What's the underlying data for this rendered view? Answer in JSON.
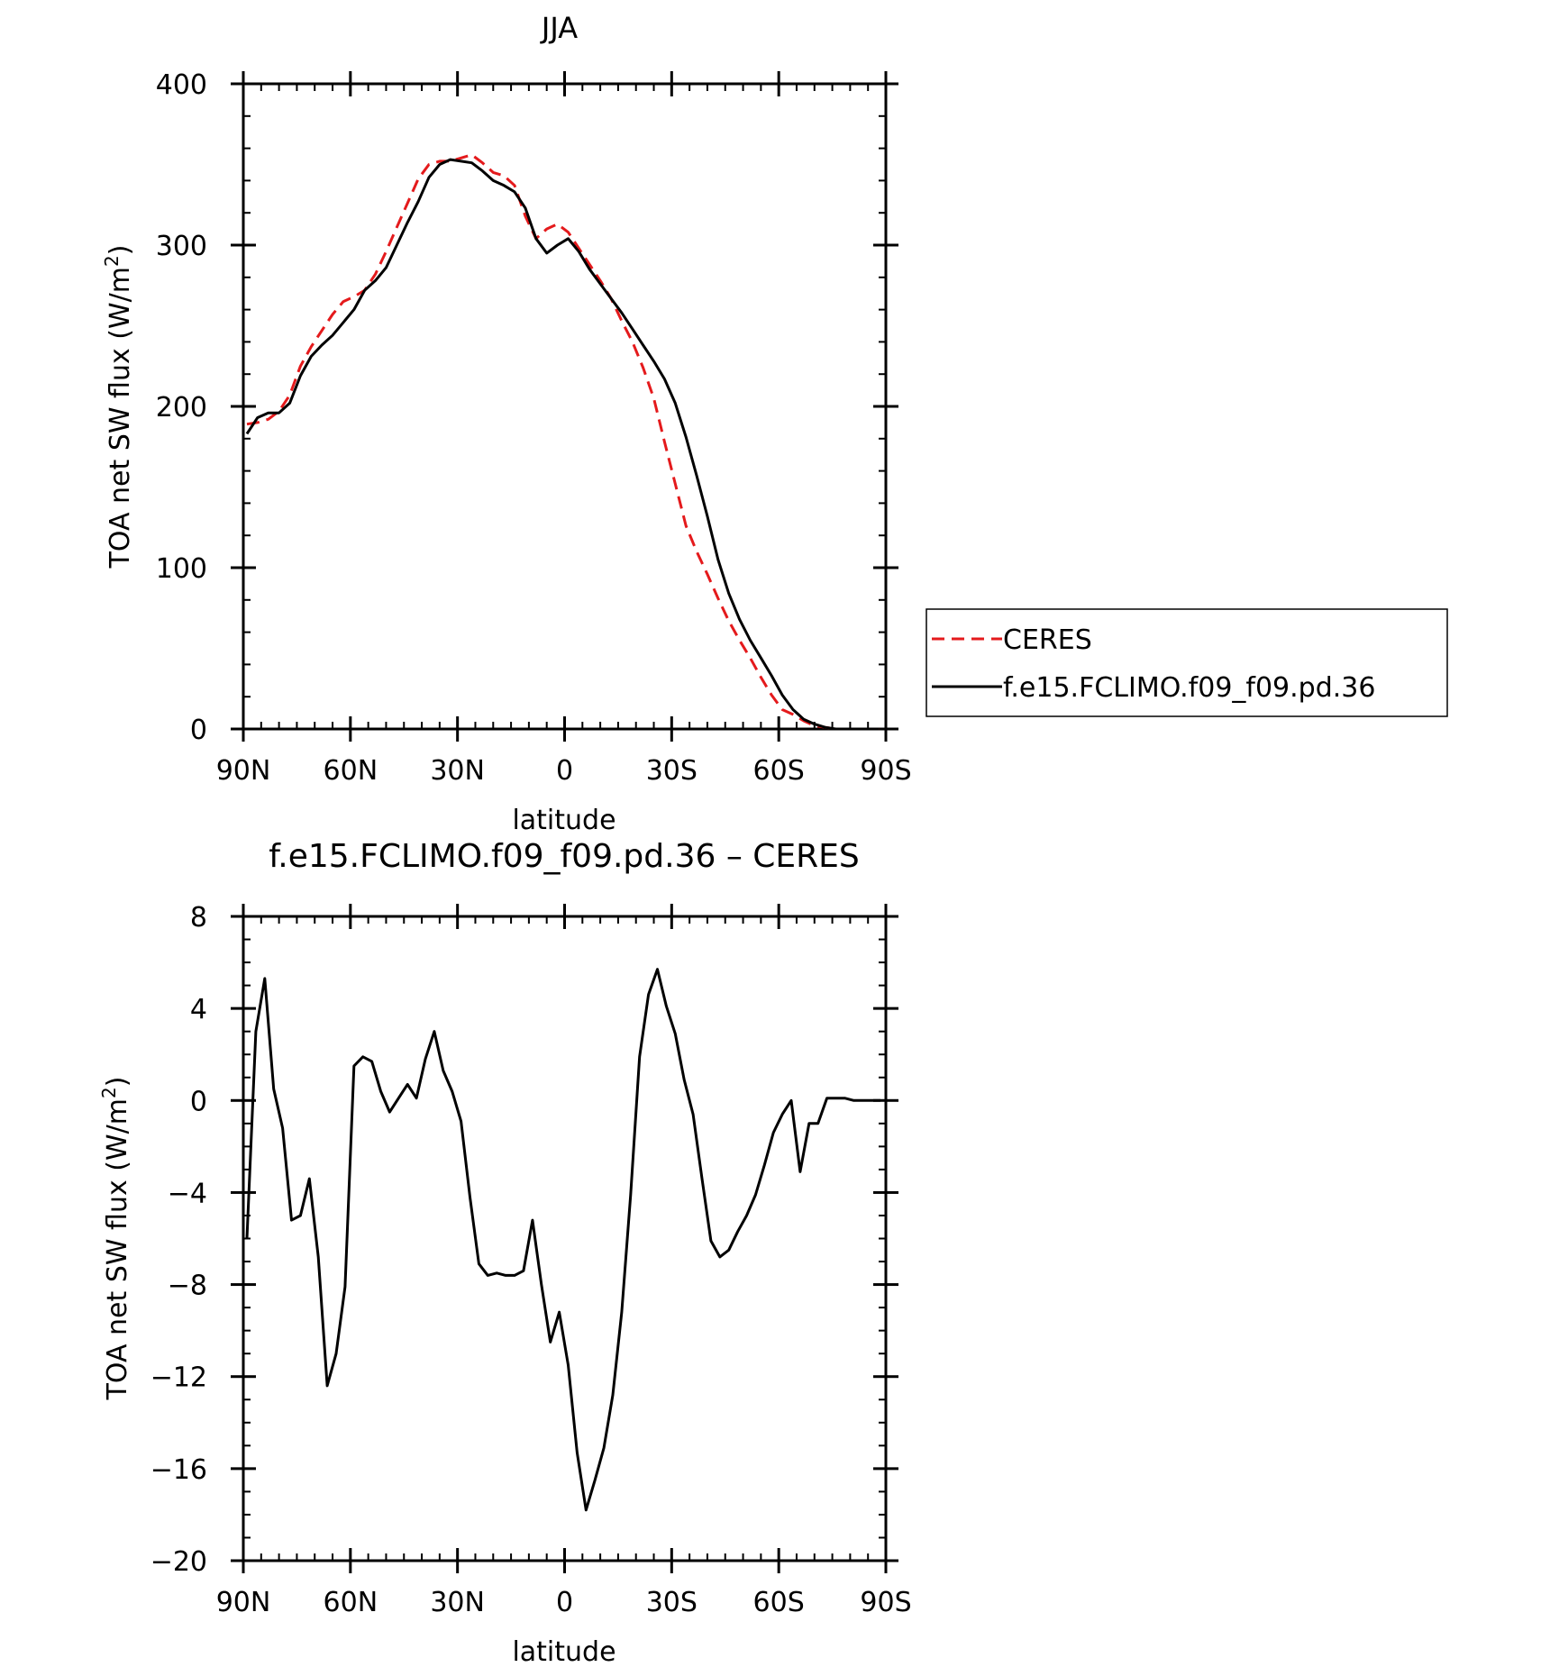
{
  "chart_data": [
    {
      "type": "line",
      "title": "JJA",
      "xlabel": "latitude",
      "ylabel_main": "TOA net SW flux (W/m",
      "ylabel_sup": "2",
      "ylabel_close": ")",
      "xlim": [
        90,
        -90
      ],
      "ylim": [
        0,
        400
      ],
      "xticks": [
        {
          "value": 90,
          "label": "90N"
        },
        {
          "value": 60,
          "label": "60N"
        },
        {
          "value": 30,
          "label": "30N"
        },
        {
          "value": 0,
          "label": "0"
        },
        {
          "value": -30,
          "label": "30S"
        },
        {
          "value": -60,
          "label": "60S"
        },
        {
          "value": -90,
          "label": "90S"
        }
      ],
      "yticks": [
        {
          "value": 0,
          "label": "0"
        },
        {
          "value": 100,
          "label": "100"
        },
        {
          "value": 200,
          "label": "200"
        },
        {
          "value": 300,
          "label": "300"
        },
        {
          "value": 400,
          "label": "400"
        }
      ],
      "legend": {
        "placement": "right"
      },
      "series": [
        {
          "name": "CERES",
          "color": "#e41a1c",
          "dash": true,
          "x": [
            89,
            86,
            83,
            80,
            77,
            74,
            71,
            68,
            65,
            62,
            59,
            56,
            53,
            50,
            47,
            44,
            41,
            38,
            35,
            32,
            29,
            26,
            23,
            20,
            17,
            14,
            11,
            8,
            5,
            2,
            -1,
            -4,
            -7,
            -10,
            -13,
            -16,
            -19,
            -22,
            -25,
            -28,
            -31,
            -34,
            -37,
            -40,
            -43,
            -46,
            -49,
            -52,
            -55,
            -58,
            -61,
            -64,
            -67,
            -70,
            -73,
            -76,
            -79,
            -82,
            -85,
            -88
          ],
          "y": [
            189,
            190,
            192,
            197,
            207,
            225,
            237,
            247,
            257,
            265,
            268,
            272,
            282,
            296,
            311,
            326,
            341,
            350,
            352,
            352,
            354,
            356,
            351,
            345,
            343,
            337,
            318,
            304,
            310,
            313,
            308,
            298,
            288,
            278,
            267,
            253,
            240,
            224,
            205,
            178,
            152,
            126,
            110,
            96,
            81,
            67,
            55,
            44,
            32,
            21,
            12,
            9,
            5,
            2,
            1,
            0,
            0,
            0,
            0,
            0
          ]
        },
        {
          "name": "f.e15.FCLIMO.f09_f09.pd.36",
          "color": "#000000",
          "dash": false,
          "x": [
            89,
            86,
            83,
            80,
            77,
            74,
            71,
            68,
            65,
            62,
            59,
            56,
            53,
            50,
            47,
            44,
            41,
            38,
            35,
            32,
            29,
            26,
            23,
            20,
            17,
            14,
            11,
            8,
            5,
            2,
            -1,
            -4,
            -7,
            -10,
            -13,
            -16,
            -19,
            -22,
            -25,
            -28,
            -31,
            -34,
            -37,
            -40,
            -43,
            -46,
            -49,
            -52,
            -55,
            -58,
            -61,
            -64,
            -67,
            -70,
            -73,
            -76,
            -79,
            -82,
            -85,
            -88
          ],
          "y": [
            183,
            193,
            196,
            196,
            202,
            219,
            231,
            238,
            244,
            252,
            260,
            272,
            278,
            286,
            300,
            314,
            327,
            342,
            350,
            353,
            352,
            351,
            346,
            340,
            337,
            333,
            323,
            304,
            295,
            300,
            304,
            296,
            285,
            276,
            267,
            258,
            248,
            238,
            228,
            217,
            202,
            181,
            157,
            132,
            105,
            84,
            68,
            55,
            44,
            33,
            21,
            12,
            6,
            3,
            1,
            0,
            0,
            0,
            0,
            0
          ]
        }
      ]
    },
    {
      "type": "line",
      "title": "f.e15.FCLIMO.f09_f09.pd.36 – CERES",
      "xlabel": "latitude",
      "ylabel_main": "TOA net SW flux (W/m",
      "ylabel_sup": "2",
      "ylabel_close": ")",
      "xlim": [
        90,
        -90
      ],
      "ylim": [
        -20,
        8
      ],
      "xticks": [
        {
          "value": 90,
          "label": "90N"
        },
        {
          "value": 60,
          "label": "60N"
        },
        {
          "value": 30,
          "label": "30N"
        },
        {
          "value": 0,
          "label": "0"
        },
        {
          "value": -30,
          "label": "30S"
        },
        {
          "value": -60,
          "label": "60S"
        },
        {
          "value": -90,
          "label": "90S"
        }
      ],
      "yticks": [
        {
          "value": -20,
          "label": "−20"
        },
        {
          "value": -16,
          "label": "−16"
        },
        {
          "value": -12,
          "label": "−12"
        },
        {
          "value": -8,
          "label": "−8"
        },
        {
          "value": -4,
          "label": "−4"
        },
        {
          "value": 0,
          "label": "0"
        },
        {
          "value": 4,
          "label": "4"
        },
        {
          "value": 8,
          "label": "8"
        }
      ],
      "series": [
        {
          "color": "#000000",
          "dash": false,
          "x": [
            89,
            86.5,
            84,
            81.5,
            79,
            76.5,
            74,
            71.5,
            69,
            66.5,
            64,
            61.5,
            59,
            56.5,
            54,
            51.5,
            49,
            46.5,
            44,
            41.5,
            39,
            36.5,
            34,
            31.5,
            29,
            26.5,
            24,
            21.5,
            19,
            16.5,
            14,
            11.5,
            9,
            6.5,
            4,
            1.5,
            -1,
            -3.5,
            -6,
            -8.5,
            -11,
            -13.5,
            -16,
            -18.5,
            -21,
            -23.5,
            -26,
            -28.5,
            -31,
            -33.5,
            -36,
            -38.5,
            -41,
            -43.5,
            -46,
            -48.5,
            -51,
            -53.5,
            -56,
            -58.5,
            -61,
            -63.5,
            -66,
            -68.5,
            -71,
            -73.5,
            -76,
            -78.5,
            -81,
            -83.5,
            -86,
            -88.5
          ],
          "y": [
            -6.0,
            3.0,
            5.3,
            0.5,
            -1.2,
            -5.2,
            -5.0,
            -3.4,
            -6.8,
            -12.4,
            -11.0,
            -8.1,
            1.5,
            1.9,
            1.7,
            0.4,
            -0.5,
            0.1,
            0.7,
            0.1,
            1.8,
            3.0,
            1.3,
            0.4,
            -0.9,
            -4.2,
            -7.1,
            -7.6,
            -7.5,
            -7.6,
            -7.6,
            -7.4,
            -5.2,
            -8.0,
            -10.5,
            -9.2,
            -11.5,
            -15.3,
            -17.8,
            -16.5,
            -15.1,
            -12.8,
            -9.2,
            -4.1,
            1.9,
            4.6,
            5.7,
            4.1,
            2.9,
            0.9,
            -0.6,
            -3.4,
            -6.1,
            -6.8,
            -6.5,
            -5.7,
            -5.0,
            -4.1,
            -2.8,
            -1.4,
            -0.6,
            0.0,
            -3.1,
            -1.0,
            -1.0,
            0.1,
            0.1,
            0.1,
            0.0,
            0.0,
            0.0,
            0.0
          ]
        }
      ]
    }
  ]
}
